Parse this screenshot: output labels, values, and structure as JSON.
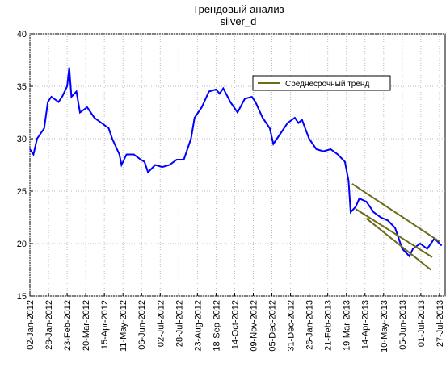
{
  "chart_data": {
    "type": "line",
    "title": "Трендовый анализ",
    "subtitle": "silver_d",
    "xlim": [
      0,
      580
    ],
    "ylim": [
      15,
      40
    ],
    "yticks": [
      15,
      20,
      25,
      30,
      35,
      40
    ],
    "xticks": [
      {
        "value": 0,
        "label": "02-Jan-2012"
      },
      {
        "value": 26,
        "label": "28-Jan-2012"
      },
      {
        "value": 52,
        "label": "23-Feb-2012"
      },
      {
        "value": 78,
        "label": "20-Mar-2012"
      },
      {
        "value": 104,
        "label": "15-Apr-2012"
      },
      {
        "value": 130,
        "label": "11-May-2012"
      },
      {
        "value": 156,
        "label": "06-Jun-2012"
      },
      {
        "value": 182,
        "label": "02-Jul-2012"
      },
      {
        "value": 208,
        "label": "28-Jul-2012"
      },
      {
        "value": 234,
        "label": "23-Aug-2012"
      },
      {
        "value": 260,
        "label": "18-Sep-2012"
      },
      {
        "value": 286,
        "label": "14-Oct-2012"
      },
      {
        "value": 312,
        "label": "09-Nov-2012"
      },
      {
        "value": 338,
        "label": "05-Dec-2012"
      },
      {
        "value": 364,
        "label": "31-Dec-2012"
      },
      {
        "value": 390,
        "label": "26-Jan-2013"
      },
      {
        "value": 416,
        "label": "21-Feb-2013"
      },
      {
        "value": 442,
        "label": "19-Mar-2013"
      },
      {
        "value": 468,
        "label": "14-Apr-2013"
      },
      {
        "value": 494,
        "label": "10-May-2013"
      },
      {
        "value": 520,
        "label": "05-Jun-2013"
      },
      {
        "value": 546,
        "label": "01-Jul-2013"
      },
      {
        "value": 572,
        "label": "27-Jul-2013"
      }
    ],
    "grid": true,
    "legend": "upper right",
    "series": [
      {
        "color": "#0000ff",
        "x": [
          0,
          5,
          10,
          20,
          25,
          30,
          40,
          45,
          52,
          55,
          58,
          65,
          70,
          80,
          90,
          100,
          110,
          115,
          125,
          128,
          135,
          145,
          155,
          160,
          165,
          175,
          185,
          195,
          205,
          215,
          225,
          230,
          240,
          250,
          260,
          265,
          270,
          280,
          290,
          300,
          310,
          315,
          325,
          335,
          340,
          350,
          360,
          370,
          375,
          380,
          390,
          400,
          410,
          420,
          430,
          440,
          445,
          448,
          455,
          460,
          470,
          480,
          490,
          500,
          510,
          515,
          520,
          530,
          535,
          545,
          555,
          565,
          575
        ],
        "values": [
          29,
          28.5,
          30,
          31,
          33.5,
          34,
          33.5,
          34,
          35,
          36.8,
          34,
          34.5,
          32.5,
          33,
          32,
          31.5,
          31,
          30,
          28.5,
          27.5,
          28.5,
          28.5,
          28,
          27.8,
          26.8,
          27.5,
          27.3,
          27.5,
          28,
          28,
          30,
          32,
          33,
          34.5,
          34.7,
          34.3,
          34.8,
          33.5,
          32.5,
          33.8,
          34,
          33.5,
          32,
          31,
          29.5,
          30.5,
          31.5,
          32,
          31.5,
          31.8,
          30,
          29,
          28.8,
          29,
          28.5,
          27.8,
          26,
          23,
          23.5,
          24.3,
          24,
          23,
          22.5,
          22.2,
          21.5,
          20.5,
          19.5,
          18.8,
          19.5,
          20,
          19.5,
          20.5,
          19.8
        ]
      },
      {
        "name": "Среднесрочный тренд",
        "color": "#6b6b1a",
        "x": [
          450,
          572,
          572,
          455,
          562,
          562,
          470,
          560
        ],
        "values": [
          25.7,
          20.2,
          null,
          23.3,
          18.7,
          null,
          22.4,
          17.5
        ]
      }
    ]
  }
}
